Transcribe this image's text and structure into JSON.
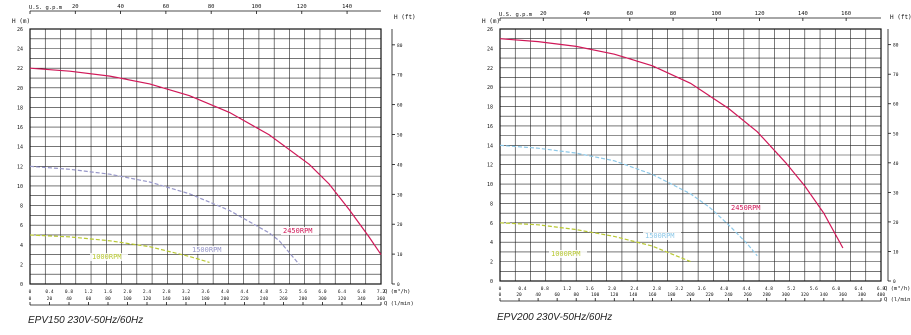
{
  "chart_data": [
    {
      "type": "line",
      "caption": "EPV150 230V-50Hz/60Hz",
      "y_label": "H (m)",
      "y2_label": "H (ft)",
      "top_label": "U.S. g.p.m",
      "x_label": "Q (m³/h)",
      "x2_label": "Q (l/min)",
      "ylim": [
        0,
        26
      ],
      "y_ticks": [
        0,
        2,
        4,
        6,
        8,
        10,
        12,
        14,
        16,
        18,
        20,
        22,
        24,
        26
      ],
      "y_ft_ticks": [
        0,
        10,
        20,
        30,
        40,
        50,
        60,
        70,
        80
      ],
      "xlim": [
        0,
        35.2
      ],
      "x_ticks": [
        0,
        0.4,
        0.8,
        1.2,
        1.6,
        2.0,
        2.4,
        2.8,
        3.2,
        3.6,
        4.0,
        4.4,
        4.8,
        5.2,
        5.6,
        6.0,
        6.4,
        6.8,
        7.2
      ],
      "x_lmin_ticks": [
        0,
        20,
        40,
        60,
        80,
        100,
        120,
        140,
        160,
        180,
        200,
        220,
        240,
        260,
        280,
        300,
        320,
        340,
        360
      ],
      "x_gpm_ticks": [
        0,
        20,
        40,
        60,
        80,
        100,
        120,
        140
      ],
      "series": [
        {
          "name": "2450RPM",
          "color": "#d01858",
          "points": [
            [
              0,
              22
            ],
            [
              4,
              21.7
            ],
            [
              8,
              21.2
            ],
            [
              12,
              20.4
            ],
            [
              16,
              19.2
            ],
            [
              20,
              17.5
            ],
            [
              24,
              15.2
            ],
            [
              28,
              12.2
            ],
            [
              30,
              10.2
            ],
            [
              32,
              7.6
            ],
            [
              34,
              4.8
            ],
            [
              35.2,
              3
            ]
          ]
        },
        {
          "name": "1500RPM",
          "color": "#9696c8",
          "dashed": true,
          "points": [
            [
              0,
              12
            ],
            [
              4,
              11.7
            ],
            [
              8,
              11.2
            ],
            [
              12,
              10.4
            ],
            [
              16,
              9.2
            ],
            [
              20,
              7.5
            ],
            [
              24,
              5.2
            ],
            [
              25,
              4.4
            ],
            [
              26,
              3.2
            ],
            [
              27,
              2
            ]
          ]
        },
        {
          "name": "1000RPM",
          "color": "#b8c832",
          "dashed": true,
          "points": [
            [
              0,
              5
            ],
            [
              4,
              4.8
            ],
            [
              8,
              4.4
            ],
            [
              12,
              3.8
            ],
            [
              16,
              2.8
            ],
            [
              18,
              2.2
            ]
          ]
        }
      ]
    },
    {
      "type": "line",
      "caption": "EPV200 230V-50Hz/60Hz",
      "y_label": "H (m)",
      "y2_label": "H (ft)",
      "top_label": "U.S. g.p.m",
      "x_label": "Q (m³/h)",
      "x2_label": "Q (l/min)",
      "ylim": [
        0,
        26
      ],
      "y_ticks": [
        0,
        2,
        4,
        6,
        8,
        10,
        12,
        14,
        16,
        18,
        20,
        22,
        24,
        26
      ],
      "y_ft_ticks": [
        0,
        10,
        20,
        30,
        40,
        50,
        60,
        70,
        80
      ],
      "xlim": [
        0,
        40
      ],
      "x_ticks": [
        0,
        0.4,
        0.8,
        1.2,
        1.6,
        2.0,
        2.4,
        2.8,
        3.2,
        3.6,
        4.0,
        4.4,
        4.8,
        5.2,
        5.6,
        6.0,
        6.4,
        6.8
      ],
      "x_lmin_ticks": [
        0,
        20,
        40,
        60,
        80,
        100,
        120,
        140,
        160,
        180,
        200,
        220,
        240,
        260,
        280,
        300,
        320,
        340,
        360,
        380,
        400
      ],
      "x_gpm_ticks": [
        0,
        20,
        40,
        60,
        80,
        100,
        120,
        140,
        160
      ],
      "series": [
        {
          "name": "2450RPM",
          "color": "#d01858",
          "points": [
            [
              0,
              25
            ],
            [
              4,
              24.7
            ],
            [
              8,
              24.2
            ],
            [
              12,
              23.4
            ],
            [
              16,
              22.2
            ],
            [
              20,
              20.4
            ],
            [
              24,
              17.8
            ],
            [
              27,
              15.4
            ],
            [
              30,
              12.2
            ],
            [
              32,
              9.8
            ],
            [
              34,
              7
            ],
            [
              36,
              3.4
            ]
          ]
        },
        {
          "name": "1500RPM",
          "color": "#8cc8e8",
          "dashed": true,
          "points": [
            [
              0,
              14
            ],
            [
              4,
              13.7
            ],
            [
              8,
              13.2
            ],
            [
              12,
              12.4
            ],
            [
              16,
              11
            ],
            [
              20,
              9
            ],
            [
              22,
              7.6
            ],
            [
              24,
              5.8
            ],
            [
              26,
              3.8
            ],
            [
              27,
              2.6
            ]
          ]
        },
        {
          "name": "1000RPM",
          "color": "#b8c832",
          "dashed": true,
          "points": [
            [
              0,
              6
            ],
            [
              4,
              5.8
            ],
            [
              8,
              5.3
            ],
            [
              12,
              4.6
            ],
            [
              16,
              3.6
            ],
            [
              18,
              2.8
            ],
            [
              20,
              2
            ]
          ]
        }
      ]
    }
  ]
}
